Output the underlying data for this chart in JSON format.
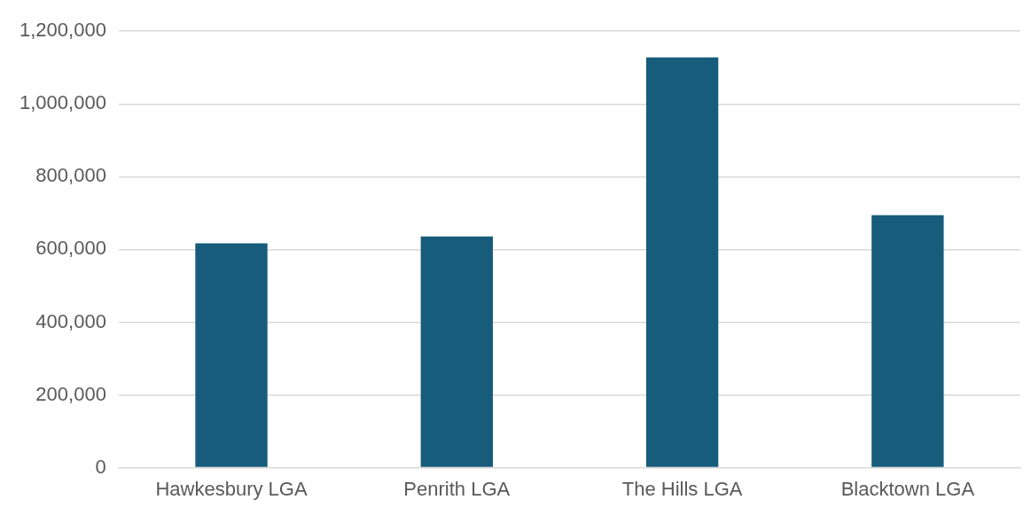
{
  "chart_data": {
    "type": "bar",
    "categories": [
      "Hawkesbury LGA",
      "Penrith LGA",
      "The Hills LGA",
      "Blacktown LGA"
    ],
    "values": [
      617000,
      636000,
      1128000,
      694000
    ],
    "color": "#175c7b",
    "ylim": [
      0,
      1200000
    ],
    "yticks": [
      0,
      {
        "value": 200000,
        "label": "200,000"
      },
      {
        "value": 400000,
        "label": "400,000"
      },
      {
        "value": 600000,
        "label": "600,000"
      },
      {
        "value": 800000,
        "label": "800,000"
      },
      {
        "value": 1000000,
        "label": "1,000,000"
      },
      {
        "value": 1200000,
        "label": "1,200,000"
      }
    ],
    "grid": "y",
    "legend": false
  }
}
